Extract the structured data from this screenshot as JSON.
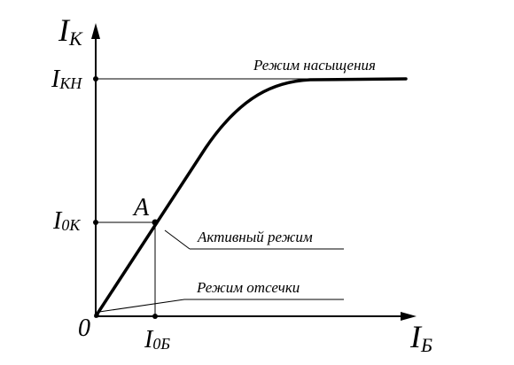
{
  "diagram": {
    "y_axis": {
      "main": "I",
      "sub": "К"
    },
    "x_axis": {
      "main": "I",
      "sub": "Б"
    },
    "origin_label": "0",
    "ticks_y": [
      {
        "main": "I",
        "sub": "КН"
      },
      {
        "main": "I",
        "sub": "0К"
      }
    ],
    "tick_x": {
      "main": "I",
      "sub": "0Б"
    },
    "point_label": "A",
    "regions": {
      "saturation": "Режим насыщения",
      "active": "Активный режим",
      "cutoff": "Режим отсечки"
    }
  }
}
